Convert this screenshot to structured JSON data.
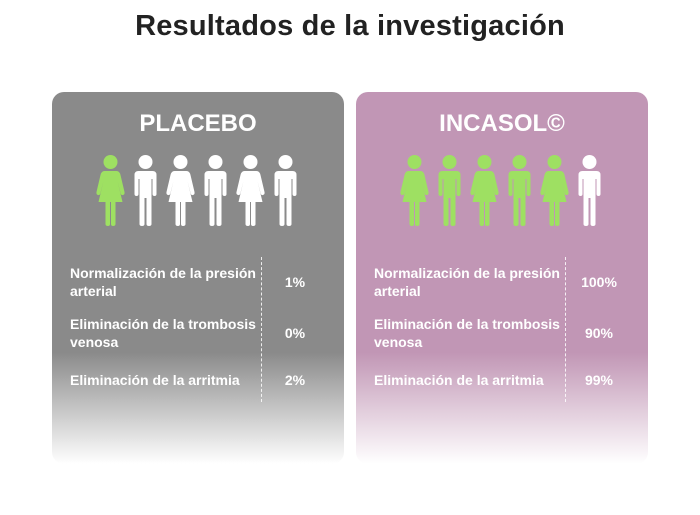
{
  "title": "Resultados de la investigación",
  "placebo": {
    "title": "PLACEBO",
    "rows": [
      {
        "label": "Normalización de la presión arterial",
        "value": "1%"
      },
      {
        "label": "Eliminación de la trombosis venosa",
        "value": "0%"
      },
      {
        "label": "Eliminación de la arritmia",
        "value": "2%"
      }
    ],
    "people": [
      "green-female",
      "white-male",
      "white-female",
      "white-male",
      "white-female",
      "white-male"
    ]
  },
  "incasol": {
    "title": "INCASOL©",
    "rows": [
      {
        "label": "Normalización de la presión arterial",
        "value": "100%"
      },
      {
        "label": "Eliminación de la trombosis venosa",
        "value": "90%"
      },
      {
        "label": "Eliminación de la arritmia",
        "value": "99%"
      }
    ],
    "people": [
      "green-female",
      "green-male",
      "green-female",
      "green-male",
      "green-female",
      "white-male"
    ]
  },
  "colors": {
    "placebo_bg": "#8a8a8a",
    "incasol_bg": "#c196b5",
    "highlight_green": "#9ee062",
    "text_white": "#ffffff"
  }
}
